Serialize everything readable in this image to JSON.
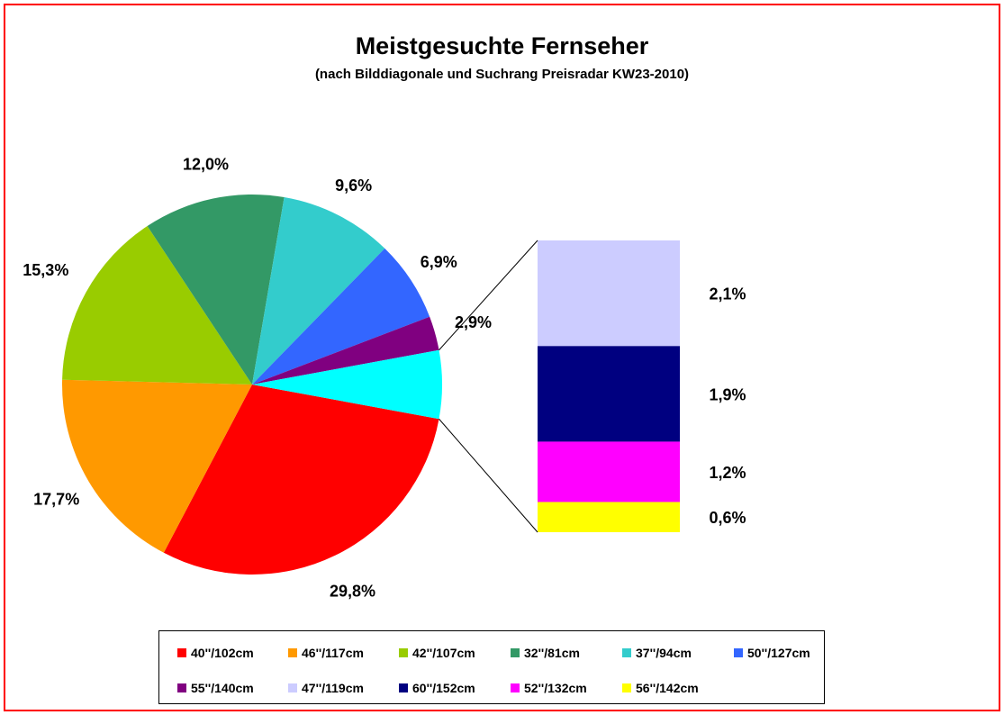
{
  "chart_data": {
    "type": "pie",
    "title": "Meistgesuchte Fernseher",
    "subtitle": "(nach Bilddiagonale und Suchrang Preisradar KW23-2010)",
    "slices": [
      {
        "label": "40''/102cm",
        "value": 29.8,
        "value_label": "29,8%",
        "color": "#ff0000"
      },
      {
        "label": "46''/117cm",
        "value": 17.7,
        "value_label": "17,7%",
        "color": "#ff9900"
      },
      {
        "label": "42''/107cm",
        "value": 15.3,
        "value_label": "15,3%",
        "color": "#99cc00"
      },
      {
        "label": "32''/81cm",
        "value": 12.0,
        "value_label": "12,0%",
        "color": "#339966"
      },
      {
        "label": "37''/94cm",
        "value": 9.6,
        "value_label": "9,6%",
        "color": "#33cccc"
      },
      {
        "label": "50''/127cm",
        "value": 6.9,
        "value_label": "6,9%",
        "color": "#3366ff"
      },
      {
        "label": "55''/140cm",
        "value": 2.9,
        "value_label": "2,9%",
        "color": "#800080"
      }
    ],
    "other_slice_color": "#00ffff",
    "breakout": [
      {
        "label": "47''/119cm",
        "value": 2.1,
        "value_label": "2,1%",
        "color": "#ccccff"
      },
      {
        "label": "60''/152cm",
        "value": 1.9,
        "value_label": "1,9%",
        "color": "#000080"
      },
      {
        "label": "52''/132cm",
        "value": 1.2,
        "value_label": "1,2%",
        "color": "#ff00ff"
      },
      {
        "label": "56''/142cm",
        "value": 0.6,
        "value_label": "0,6%",
        "color": "#ffff00"
      }
    ],
    "legend_position": "bottom"
  }
}
